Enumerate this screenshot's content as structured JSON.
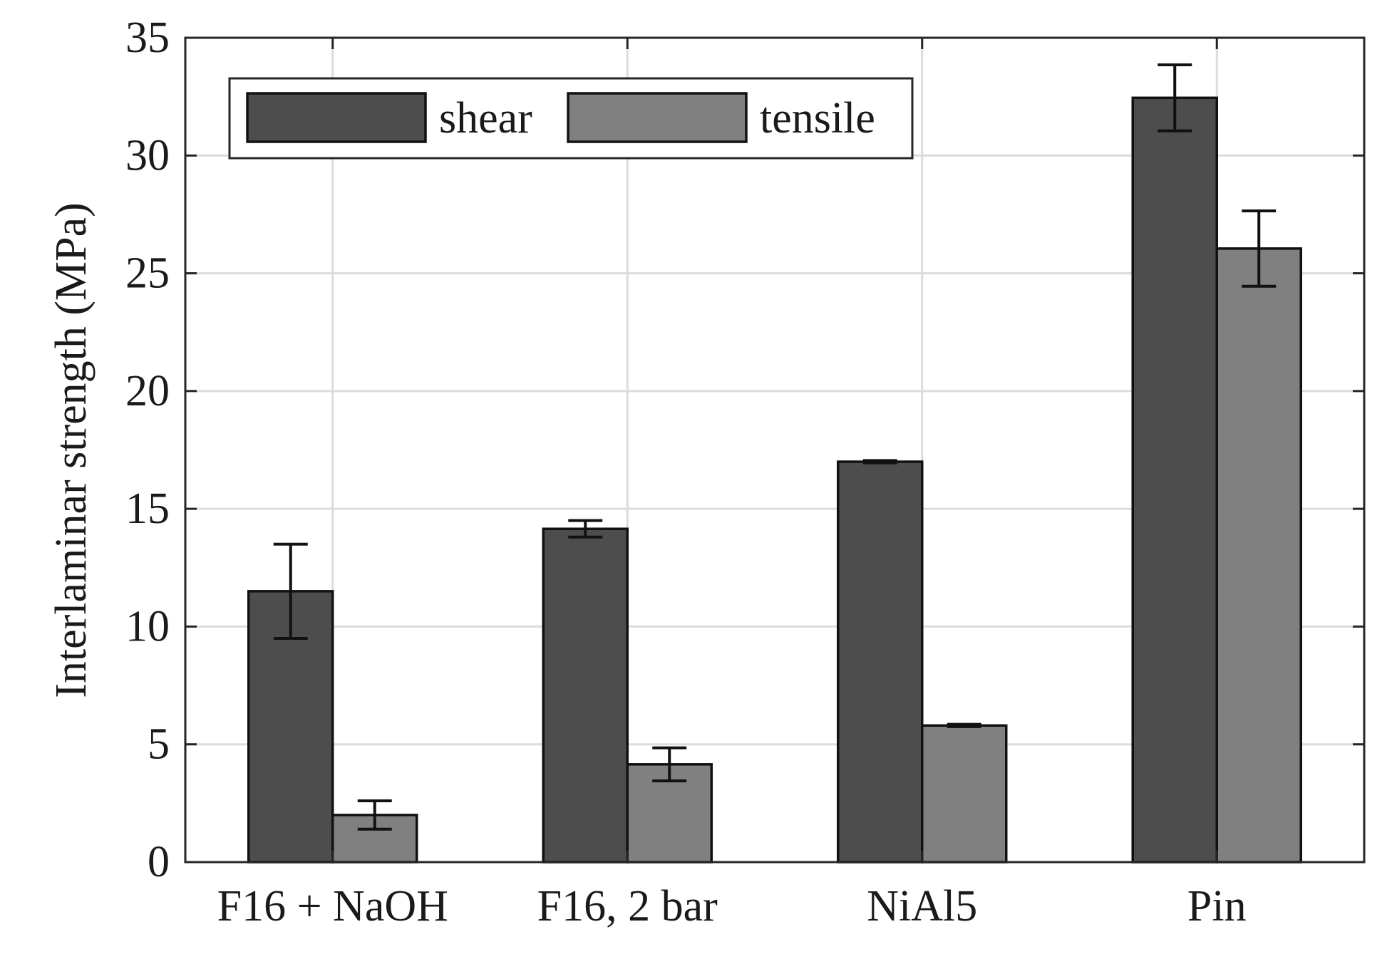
{
  "chart_data": {
    "type": "bar",
    "title": "",
    "xlabel": "",
    "ylabel": "Interlaminar strength (MPa)",
    "ylim": [
      0,
      35
    ],
    "yticks": [
      0,
      5,
      10,
      15,
      20,
      25,
      30,
      35
    ],
    "grid": true,
    "legend_position": "top-left",
    "categories": [
      "F16 + NaOH",
      "F16, 2 bar",
      "NiAl5",
      "Pin"
    ],
    "series": [
      {
        "name": "shear",
        "color": "#4d4d4d",
        "values": [
          11.5,
          14.15,
          17.0,
          32.45
        ],
        "errors": [
          2.0,
          0.35,
          0.05,
          1.4
        ]
      },
      {
        "name": "tensile",
        "color": "#808080",
        "values": [
          2.0,
          4.15,
          5.8,
          26.05
        ],
        "errors": [
          0.6,
          0.7,
          0.05,
          1.6
        ]
      }
    ]
  }
}
